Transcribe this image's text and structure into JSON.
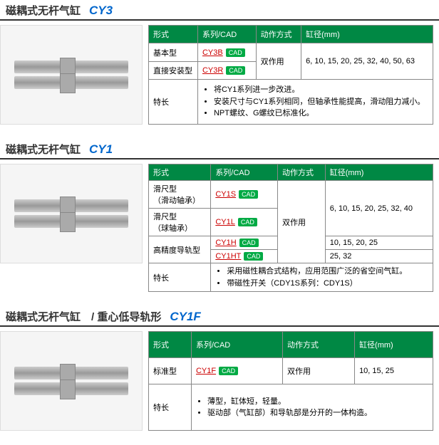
{
  "sections": [
    {
      "title_cn": "磁耦式无杆气缸",
      "title_code": "CY3",
      "headers": [
        "形式",
        "系列/CAD",
        "动作方式",
        "缸径(mm)"
      ],
      "rows": [
        {
          "form": "基本型",
          "series": "CY3B",
          "action_span": true,
          "action": "双作用",
          "bore_span": true,
          "bore": "6, 10, 15, 20, 25, 32, 40, 50, 63"
        },
        {
          "form": "直接安装型",
          "series": "CY3R"
        }
      ],
      "feature_label": "特长",
      "features": [
        "将CY1系列进一步改进。",
        "安装尺寸与CY1系列相同，但轴承性能提高，滑动阻力减小。",
        "NPT螺纹、G螺纹已标准化。"
      ]
    },
    {
      "title_cn": "磁耦式无杆气缸",
      "title_code": "CY1",
      "headers": [
        "形式",
        "系列/CAD",
        "动作方式",
        "缸径(mm)"
      ],
      "rows": [
        {
          "form": "滑尺型\n（滑动轴承）",
          "series": "CY1S",
          "action_span4": true,
          "action": "双作用",
          "bore_span": true,
          "bore": "6, 10, 15, 20, 25, 32, 40"
        },
        {
          "form": "滑尺型\n（球轴承）",
          "series": "CY1L"
        },
        {
          "form": "高精度导轨型",
          "form_span": true,
          "series": "CY1H",
          "bore": "10, 15, 20, 25"
        },
        {
          "series": "CY1HT",
          "bore": "25, 32"
        }
      ],
      "feature_label": "特长",
      "features": [
        "采用磁性耦合式结构，应用范围广泛的省空间气缸。",
        "带磁性开关（CDY1S系列：CDY1S）"
      ]
    },
    {
      "title_cn": "磁耦式无杆气缸　/ 重心低导轨形",
      "title_code": "CY1F",
      "headers": [
        "形式",
        "系列/CAD",
        "动作方式",
        "缸径(mm)"
      ],
      "rows": [
        {
          "form": "标准型",
          "series": "CY1F",
          "action": "双作用",
          "bore": "10, 15, 25"
        }
      ],
      "feature_label": "特长",
      "features": [
        "薄型，缸体短，轻量。",
        "驱动部（气缸部）和导轨部是分开的一体构造。"
      ]
    }
  ],
  "cad_label": "CAD"
}
